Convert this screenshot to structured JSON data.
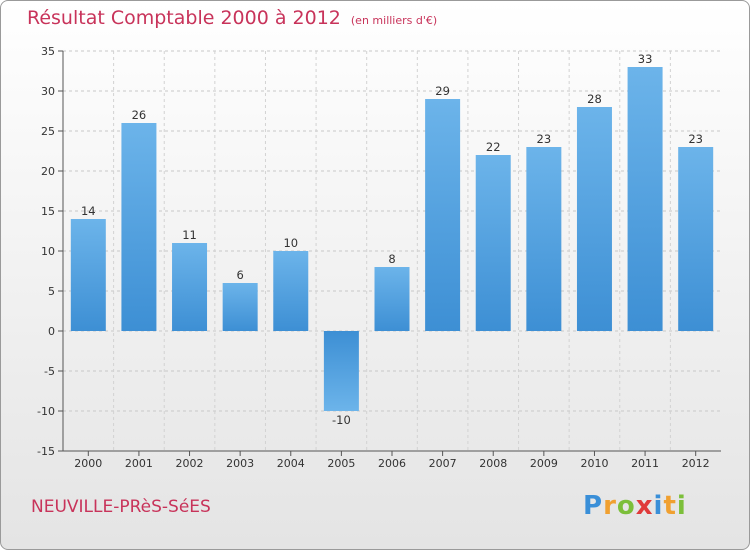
{
  "header": {
    "title": "Résultat Comptable 2000 à 2012",
    "subtitle": "(en milliers d'€)"
  },
  "footer": {
    "town": "NEUVILLE-PRèS-SéES",
    "logo_letters": [
      {
        "ch": "P",
        "color": "#3a8fd8"
      },
      {
        "ch": "r",
        "color": "#f0a030"
      },
      {
        "ch": "o",
        "color": "#7cbf3a"
      },
      {
        "ch": "x",
        "color": "#e03a3a"
      },
      {
        "ch": "i",
        "color": "#3a8fd8"
      },
      {
        "ch": "t",
        "color": "#f0a030"
      },
      {
        "ch": "i",
        "color": "#7cbf3a"
      }
    ]
  },
  "chart_data": {
    "type": "bar",
    "title": "Résultat Comptable 2000 à 2012",
    "subtitle": "(en milliers d'€)",
    "categories": [
      "2000",
      "2001",
      "2002",
      "2003",
      "2004",
      "2005",
      "2006",
      "2007",
      "2008",
      "2009",
      "2010",
      "2011",
      "2012"
    ],
    "values": [
      14,
      26,
      11,
      6,
      10,
      -10,
      8,
      29,
      22,
      23,
      28,
      33,
      23
    ],
    "ylim": [
      -15,
      35
    ],
    "yticks": [
      -15,
      -10,
      -5,
      0,
      5,
      10,
      15,
      20,
      25,
      30,
      35
    ],
    "grid": "horizontal dashed",
    "bar_color": "#3d8fd4",
    "bar_color_light": "#6cb4ea",
    "axis_color": "#555555"
  }
}
